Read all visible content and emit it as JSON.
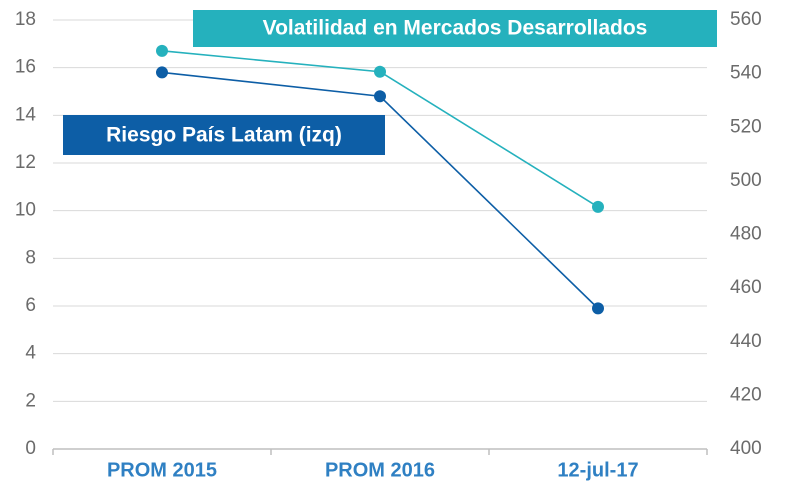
{
  "chart_data": {
    "type": "line",
    "categories": [
      "PROM 2015",
      "PROM 2016",
      "12-jul-17"
    ],
    "series": [
      {
        "name": "Volatilidad en Mercados Desarrollados",
        "color": "#25b1bd",
        "axis": "y2",
        "values": [
          548.5,
          540.7,
          490.3
        ]
      },
      {
        "name": "Riesgo País Latam (izq)",
        "color": "#0d5ea6",
        "values": [
          15.8,
          14.8,
          5.9
        ]
      }
    ],
    "ylim": [
      0,
      18
    ],
    "yticks": [
      0,
      2,
      4,
      6,
      8,
      10,
      12,
      14,
      16,
      18
    ],
    "y2lim": [
      400,
      560
    ],
    "y2ticks": [
      400,
      420,
      440,
      460,
      480,
      500,
      520,
      540,
      560
    ],
    "grid": true
  }
}
